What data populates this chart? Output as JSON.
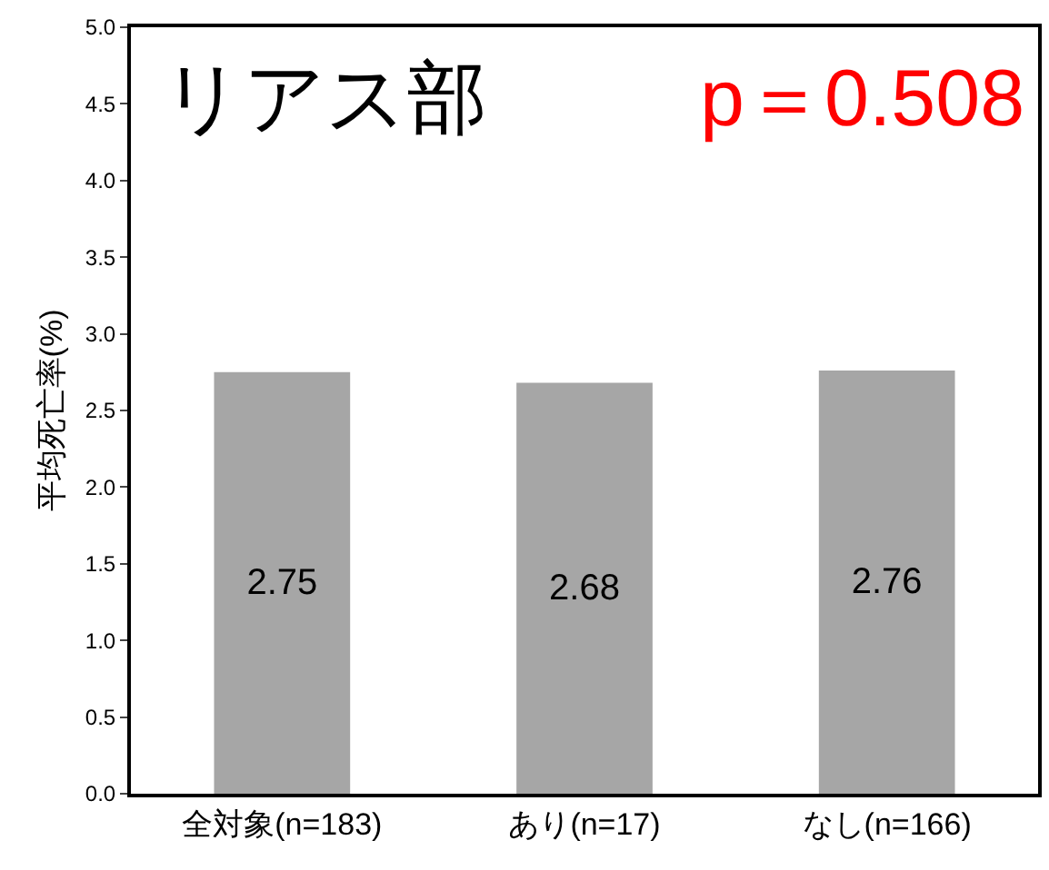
{
  "chart_data": {
    "type": "bar",
    "title": "リアス部",
    "annotations": [
      "p＝0.508"
    ],
    "ylabel": "平均死亡率(%)",
    "categories": [
      "全対象(n=183)",
      "あり(n=17)",
      "なし(n=166)"
    ],
    "values": [
      2.75,
      2.68,
      2.76
    ],
    "color": "#a6a6a6",
    "ylim": [
      0,
      5
    ],
    "yticks": [
      "0.0",
      "0.5",
      "1.0",
      "1.5",
      "2.0",
      "2.5",
      "3.0",
      "3.5",
      "4.0",
      "4.5",
      "5.0"
    ],
    "data_labels": true
  }
}
